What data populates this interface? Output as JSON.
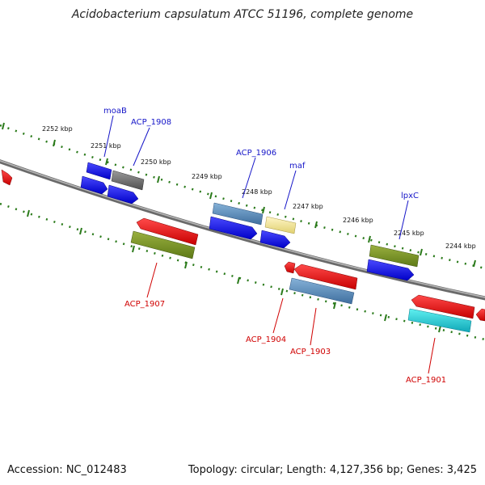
{
  "title": "Acidobacterium capsulatum ATCC 51196, complete genome",
  "footer": {
    "accession": "Accession: NC_012483",
    "summary": "Topology: circular; Length: 4,127,356 bp; Genes: 3,425"
  },
  "colors": {
    "label_top": "#1515c8",
    "label_bottom": "#d00000",
    "backbone": "#8a8a8a",
    "tick": "#2a7a1a"
  },
  "kbp_labels": [
    "2252 kbp",
    "2251 kbp",
    "2250 kbp",
    "2249 kbp",
    "2248 kbp",
    "2247 kbp",
    "2246 kbp",
    "2245 kbp",
    "2244 kbp"
  ],
  "gene_labels_top": [
    "moaB",
    "ACP_1908",
    "ACP_1906",
    "maf",
    "lpxC"
  ],
  "gene_labels_bottom": [
    "ACP_1907",
    "ACP_1904",
    "ACP_1903",
    "ACP_1901"
  ]
}
